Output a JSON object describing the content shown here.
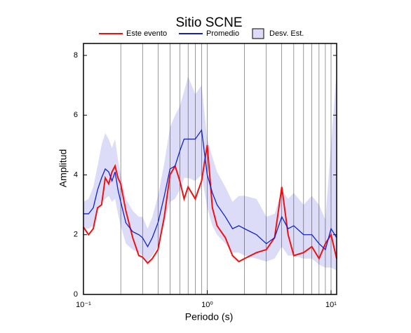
{
  "chart_data": {
    "type": "line",
    "title": "Sitio SCNE",
    "xlabel": "Periodo (s)",
    "ylabel": "Amplitud",
    "xscale": "log",
    "xlim": [
      0.1,
      11.1
    ],
    "ylim": [
      0,
      8.4
    ],
    "xticks": [
      {
        "value": 0.1,
        "label": "10⁻¹"
      },
      {
        "value": 1,
        "label": "10⁰"
      },
      {
        "value": 10,
        "label": "10¹"
      }
    ],
    "yticks": [
      0,
      2,
      4,
      6,
      8
    ],
    "xgrid": [
      0.2,
      0.3,
      0.4,
      0.5,
      0.6,
      0.7,
      0.8,
      0.9,
      1,
      2,
      3,
      4,
      5,
      6,
      7,
      8,
      9,
      10
    ],
    "grid": true,
    "x": [
      0.1,
      0.11,
      0.12,
      0.13,
      0.14,
      0.15,
      0.16,
      0.17,
      0.18,
      0.19,
      0.2,
      0.22,
      0.25,
      0.28,
      0.3,
      0.33,
      0.36,
      0.4,
      0.45,
      0.5,
      0.55,
      0.6,
      0.65,
      0.7,
      0.8,
      0.9,
      1.0,
      1.1,
      1.2,
      1.4,
      1.6,
      1.8,
      2.0,
      2.5,
      3.0,
      3.5,
      4.0,
      4.5,
      5.0,
      6.0,
      7.0,
      8.0,
      9.0,
      10,
      11.1
    ],
    "band": {
      "name": "Desv. Est.",
      "color": "#dcdcf8",
      "lower": [
        2.2,
        2.2,
        2.3,
        2.8,
        3.1,
        3.2,
        3.3,
        3.1,
        3.2,
        2.7,
        2.3,
        1.7,
        1.5,
        1.4,
        1.3,
        1.1,
        1.3,
        1.6,
        2.4,
        3.1,
        3.2,
        3.5,
        3.9,
        3.9,
        3.8,
        4.0,
        2.9,
        2.3,
        2.0,
        1.7,
        1.4,
        1.4,
        1.3,
        1.2,
        1.1,
        1.2,
        1.6,
        1.3,
        1.3,
        1.2,
        1.2,
        1.0,
        0.9,
        0.9,
        0.8
      ],
      "upper": [
        3.1,
        3.2,
        3.6,
        4.3,
        5.0,
        5.4,
        5.2,
        4.9,
        5.2,
        4.5,
        4.0,
        3.2,
        2.8,
        2.6,
        2.6,
        2.2,
        2.6,
        3.3,
        4.4,
        5.6,
        6.0,
        6.3,
        6.8,
        7.3,
        6.7,
        7.0,
        5.2,
        4.6,
        4.1,
        3.6,
        3.1,
        3.3,
        3.3,
        3.2,
        2.6,
        2.7,
        3.5,
        3.2,
        3.4,
        3.0,
        3.3,
        3.0,
        2.5,
        5.0,
        7.5
      ]
    },
    "series": [
      {
        "name": "Este evento",
        "color": "#ee1111",
        "values": [
          2.25,
          2.0,
          2.2,
          2.9,
          3.0,
          3.9,
          3.7,
          4.1,
          4.3,
          3.9,
          3.7,
          2.8,
          1.9,
          1.3,
          1.25,
          1.05,
          1.2,
          1.5,
          2.6,
          4.0,
          4.3,
          3.8,
          3.2,
          3.6,
          3.2,
          3.8,
          5.0,
          2.9,
          2.3,
          1.9,
          1.3,
          1.1,
          1.2,
          1.4,
          1.5,
          1.9,
          3.6,
          2.0,
          1.3,
          1.4,
          1.6,
          1.2,
          1.7,
          2.0,
          1.2
        ]
      },
      {
        "name": "Promedio",
        "color": "#1122cc",
        "values": [
          2.7,
          2.7,
          2.9,
          3.5,
          3.9,
          4.2,
          4.1,
          3.8,
          4.1,
          3.5,
          3.1,
          2.4,
          2.1,
          2.0,
          1.9,
          1.6,
          1.9,
          2.4,
          3.3,
          4.2,
          4.3,
          4.8,
          5.2,
          5.2,
          5.2,
          5.5,
          4.0,
          3.4,
          3.0,
          2.6,
          2.2,
          2.3,
          2.2,
          2.0,
          1.7,
          1.9,
          2.6,
          2.2,
          2.3,
          2.0,
          2.0,
          1.7,
          1.5,
          2.2,
          1.9
        ]
      }
    ]
  }
}
